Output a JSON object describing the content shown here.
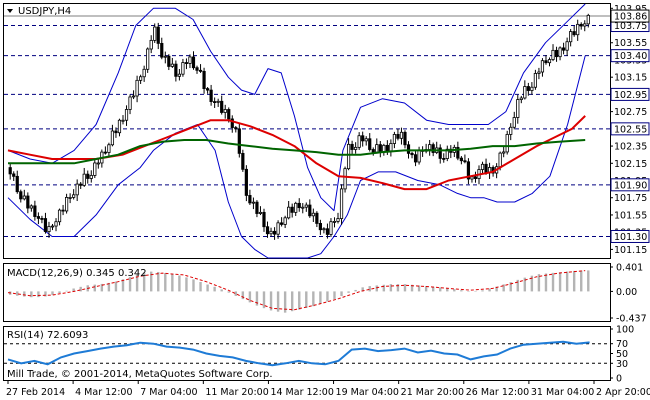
{
  "symbol_header": "USDJPY,H4",
  "watermark": "Mill Trade, © 2001-2014, MetaQuotes Software Corp.",
  "colors": {
    "background": "#ffffff",
    "border": "#000000",
    "candle": "#000000",
    "bollinger": "#0000cc",
    "ma_fast": "#dd0000",
    "ma_slow": "#006400",
    "level_line": "#000080",
    "current_price_line": "#7f7f7f",
    "macd_hist": "#b4b4b4",
    "macd_signal": "#dd0000",
    "rsi_line": "#1e7bd6",
    "rsi_level": "#000000",
    "axis_text": "#000000"
  },
  "chart_data": [
    {
      "type": "candlestick",
      "name": "price",
      "title": "USDJPY,H4",
      "ylim": [
        101.05,
        104.0
      ],
      "y_ticks": [
        "103.95",
        "103.75",
        "103.55",
        "103.35",
        "103.15",
        "102.95",
        "102.75",
        "102.55",
        "102.35",
        "102.15",
        "101.95",
        "101.75",
        "101.55",
        "101.35",
        "101.15"
      ],
      "horizontal_levels": [
        "103.75",
        "103.40",
        "102.95",
        "102.55",
        "101.90",
        "101.30"
      ],
      "current_price": "103.86",
      "x_labels": [
        "27 Feb 2014",
        "4 Mar 12:00",
        "7 Mar 04:00",
        "11 Mar 20:00",
        "14 Mar 12:00",
        "19 Mar 04:00",
        "21 Mar 20:00",
        "26 Mar 12:00",
        "31 Mar 04:00",
        "2 Apr 20:00"
      ],
      "close_path": [
        [
          0,
          102.1
        ],
        [
          6,
          101.75
        ],
        [
          12,
          101.6
        ],
        [
          18,
          101.35
        ],
        [
          26,
          101.7
        ],
        [
          34,
          101.95
        ],
        [
          42,
          102.2
        ],
        [
          50,
          102.6
        ],
        [
          56,
          102.9
        ],
        [
          62,
          103.3
        ],
        [
          66,
          103.75
        ],
        [
          70,
          103.4
        ],
        [
          76,
          103.2
        ],
        [
          82,
          103.35
        ],
        [
          86,
          103.25
        ],
        [
          90,
          103.0
        ],
        [
          96,
          102.8
        ],
        [
          100,
          102.7
        ],
        [
          104,
          102.5
        ],
        [
          108,
          101.8
        ],
        [
          114,
          101.55
        ],
        [
          120,
          101.3
        ],
        [
          126,
          101.55
        ],
        [
          132,
          101.7
        ],
        [
          138,
          101.55
        ],
        [
          144,
          101.35
        ],
        [
          150,
          101.55
        ],
        [
          154,
          102.3
        ],
        [
          160,
          102.45
        ],
        [
          166,
          102.3
        ],
        [
          172,
          102.35
        ],
        [
          178,
          102.5
        ],
        [
          184,
          102.2
        ],
        [
          190,
          102.35
        ],
        [
          196,
          102.25
        ],
        [
          202,
          102.3
        ],
        [
          206,
          102.2
        ],
        [
          210,
          101.95
        ],
        [
          214,
          102.1
        ],
        [
          220,
          102.05
        ],
        [
          226,
          102.4
        ],
        [
          232,
          102.9
        ],
        [
          238,
          103.1
        ],
        [
          244,
          103.35
        ],
        [
          250,
          103.45
        ],
        [
          256,
          103.65
        ],
        [
          262,
          103.82
        ],
        [
          264,
          103.86
        ]
      ],
      "bollinger_upper": [
        [
          0,
          102.3
        ],
        [
          10,
          102.2
        ],
        [
          20,
          102.15
        ],
        [
          30,
          102.3
        ],
        [
          40,
          102.6
        ],
        [
          50,
          103.2
        ],
        [
          58,
          103.75
        ],
        [
          66,
          103.95
        ],
        [
          76,
          103.95
        ],
        [
          84,
          103.82
        ],
        [
          92,
          103.45
        ],
        [
          100,
          103.15
        ],
        [
          106,
          103.0
        ],
        [
          112,
          102.95
        ],
        [
          118,
          103.25
        ],
        [
          124,
          103.2
        ],
        [
          130,
          102.7
        ],
        [
          136,
          102.1
        ],
        [
          142,
          101.75
        ],
        [
          148,
          101.6
        ],
        [
          152,
          102.3
        ],
        [
          160,
          102.8
        ],
        [
          170,
          102.9
        ],
        [
          180,
          102.85
        ],
        [
          190,
          102.65
        ],
        [
          200,
          102.6
        ],
        [
          210,
          102.6
        ],
        [
          218,
          102.6
        ],
        [
          226,
          102.75
        ],
        [
          234,
          103.2
        ],
        [
          244,
          103.55
        ],
        [
          254,
          103.8
        ],
        [
          262,
          104.0
        ]
      ],
      "bollinger_lower": [
        [
          0,
          101.75
        ],
        [
          10,
          101.5
        ],
        [
          20,
          101.3
        ],
        [
          30,
          101.3
        ],
        [
          40,
          101.55
        ],
        [
          50,
          101.9
        ],
        [
          60,
          102.1
        ],
        [
          66,
          102.3
        ],
        [
          76,
          102.5
        ],
        [
          86,
          102.6
        ],
        [
          94,
          102.3
        ],
        [
          100,
          101.7
        ],
        [
          106,
          101.3
        ],
        [
          112,
          101.15
        ],
        [
          118,
          101.05
        ],
        [
          124,
          101.05
        ],
        [
          130,
          101.05
        ],
        [
          136,
          101.05
        ],
        [
          142,
          101.1
        ],
        [
          148,
          101.3
        ],
        [
          154,
          101.55
        ],
        [
          160,
          101.95
        ],
        [
          168,
          102.05
        ],
        [
          176,
          102.05
        ],
        [
          186,
          101.95
        ],
        [
          196,
          101.9
        ],
        [
          204,
          101.8
        ],
        [
          210,
          101.75
        ],
        [
          216,
          101.75
        ],
        [
          222,
          101.7
        ],
        [
          230,
          101.7
        ],
        [
          238,
          101.8
        ],
        [
          246,
          102.0
        ],
        [
          254,
          102.6
        ],
        [
          262,
          103.4
        ]
      ],
      "ma_fast": [
        [
          0,
          102.3
        ],
        [
          10,
          102.25
        ],
        [
          20,
          102.2
        ],
        [
          40,
          102.2
        ],
        [
          52,
          102.25
        ],
        [
          62,
          102.35
        ],
        [
          72,
          102.45
        ],
        [
          82,
          102.55
        ],
        [
          92,
          102.65
        ],
        [
          100,
          102.65
        ],
        [
          110,
          102.58
        ],
        [
          120,
          102.48
        ],
        [
          130,
          102.35
        ],
        [
          140,
          102.15
        ],
        [
          150,
          102.0
        ],
        [
          160,
          101.98
        ],
        [
          170,
          101.92
        ],
        [
          180,
          101.85
        ],
        [
          190,
          101.85
        ],
        [
          200,
          101.95
        ],
        [
          210,
          102.0
        ],
        [
          220,
          102.05
        ],
        [
          230,
          102.2
        ],
        [
          240,
          102.35
        ],
        [
          248,
          102.45
        ],
        [
          256,
          102.55
        ],
        [
          262,
          102.7
        ]
      ],
      "ma_slow": [
        [
          0,
          102.15
        ],
        [
          10,
          102.15
        ],
        [
          20,
          102.15
        ],
        [
          30,
          102.15
        ],
        [
          40,
          102.2
        ],
        [
          50,
          102.25
        ],
        [
          60,
          102.35
        ],
        [
          70,
          102.4
        ],
        [
          80,
          102.42
        ],
        [
          90,
          102.42
        ],
        [
          100,
          102.38
        ],
        [
          110,
          102.35
        ],
        [
          120,
          102.32
        ],
        [
          130,
          102.3
        ],
        [
          140,
          102.28
        ],
        [
          150,
          102.25
        ],
        [
          160,
          102.25
        ],
        [
          170,
          102.28
        ],
        [
          180,
          102.3
        ],
        [
          190,
          102.3
        ],
        [
          200,
          102.3
        ],
        [
          210,
          102.32
        ],
        [
          220,
          102.35
        ],
        [
          230,
          102.35
        ],
        [
          240,
          102.38
        ],
        [
          250,
          102.4
        ],
        [
          262,
          102.42
        ]
      ]
    },
    {
      "type": "bar",
      "name": "macd",
      "label": "MACD(12,26,9)",
      "values_text": [
        "0.345",
        "0.342"
      ],
      "ylim": [
        -0.437,
        0.401
      ],
      "y_ticks": [
        "0.401",
        "0.00",
        "-0.437"
      ],
      "histogram": [
        [
          0,
          -0.05
        ],
        [
          6,
          -0.08
        ],
        [
          12,
          -0.1
        ],
        [
          18,
          -0.08
        ],
        [
          24,
          -0.02
        ],
        [
          30,
          0.05
        ],
        [
          36,
          0.1
        ],
        [
          42,
          0.12
        ],
        [
          48,
          0.15
        ],
        [
          54,
          0.22
        ],
        [
          60,
          0.3
        ],
        [
          66,
          0.33
        ],
        [
          72,
          0.3
        ],
        [
          78,
          0.26
        ],
        [
          84,
          0.2
        ],
        [
          90,
          0.12
        ],
        [
          96,
          0.05
        ],
        [
          102,
          -0.05
        ],
        [
          108,
          -0.15
        ],
        [
          114,
          -0.25
        ],
        [
          120,
          -0.32
        ],
        [
          126,
          -0.35
        ],
        [
          132,
          -0.3
        ],
        [
          138,
          -0.25
        ],
        [
          144,
          -0.18
        ],
        [
          150,
          -0.1
        ],
        [
          156,
          0.0
        ],
        [
          162,
          0.08
        ],
        [
          168,
          0.1
        ],
        [
          174,
          0.12
        ],
        [
          180,
          0.12
        ],
        [
          186,
          0.1
        ],
        [
          192,
          0.08
        ],
        [
          198,
          0.06
        ],
        [
          204,
          0.03
        ],
        [
          210,
          0.0
        ],
        [
          216,
          0.02
        ],
        [
          222,
          0.08
        ],
        [
          228,
          0.15
        ],
        [
          234,
          0.22
        ],
        [
          240,
          0.28
        ],
        [
          246,
          0.3
        ],
        [
          252,
          0.32
        ],
        [
          258,
          0.34
        ],
        [
          262,
          0.345
        ]
      ],
      "signal": [
        [
          0,
          -0.02
        ],
        [
          10,
          -0.07
        ],
        [
          20,
          -0.06
        ],
        [
          30,
          0.0
        ],
        [
          40,
          0.08
        ],
        [
          50,
          0.16
        ],
        [
          60,
          0.25
        ],
        [
          70,
          0.3
        ],
        [
          80,
          0.27
        ],
        [
          90,
          0.16
        ],
        [
          100,
          0.02
        ],
        [
          110,
          -0.15
        ],
        [
          120,
          -0.28
        ],
        [
          130,
          -0.3
        ],
        [
          140,
          -0.22
        ],
        [
          150,
          -0.12
        ],
        [
          160,
          0.0
        ],
        [
          170,
          0.08
        ],
        [
          180,
          0.1
        ],
        [
          190,
          0.08
        ],
        [
          200,
          0.05
        ],
        [
          210,
          0.02
        ],
        [
          220,
          0.05
        ],
        [
          230,
          0.14
        ],
        [
          240,
          0.24
        ],
        [
          250,
          0.3
        ],
        [
          262,
          0.342
        ]
      ]
    },
    {
      "type": "line",
      "name": "rsi",
      "label": "RSI(14)",
      "value_text": "72.6093",
      "ylim": [
        0,
        100
      ],
      "y_ticks": [
        "100",
        "70",
        "50",
        "30",
        "0"
      ],
      "levels": [
        70,
        30
      ],
      "values": [
        [
          0,
          38
        ],
        [
          6,
          30
        ],
        [
          12,
          35
        ],
        [
          18,
          28
        ],
        [
          24,
          42
        ],
        [
          30,
          50
        ],
        [
          36,
          55
        ],
        [
          42,
          60
        ],
        [
          48,
          64
        ],
        [
          54,
          67
        ],
        [
          60,
          72
        ],
        [
          66,
          70
        ],
        [
          72,
          64
        ],
        [
          78,
          62
        ],
        [
          84,
          58
        ],
        [
          90,
          50
        ],
        [
          96,
          45
        ],
        [
          102,
          42
        ],
        [
          108,
          35
        ],
        [
          114,
          30
        ],
        [
          120,
          26
        ],
        [
          126,
          30
        ],
        [
          132,
          35
        ],
        [
          138,
          30
        ],
        [
          144,
          28
        ],
        [
          150,
          35
        ],
        [
          156,
          58
        ],
        [
          162,
          60
        ],
        [
          168,
          55
        ],
        [
          174,
          57
        ],
        [
          180,
          60
        ],
        [
          186,
          52
        ],
        [
          192,
          56
        ],
        [
          198,
          50
        ],
        [
          204,
          48
        ],
        [
          210,
          38
        ],
        [
          216,
          44
        ],
        [
          222,
          48
        ],
        [
          228,
          60
        ],
        [
          234,
          68
        ],
        [
          240,
          70
        ],
        [
          246,
          72
        ],
        [
          252,
          74
        ],
        [
          258,
          70
        ],
        [
          264,
          72.6
        ]
      ]
    }
  ]
}
